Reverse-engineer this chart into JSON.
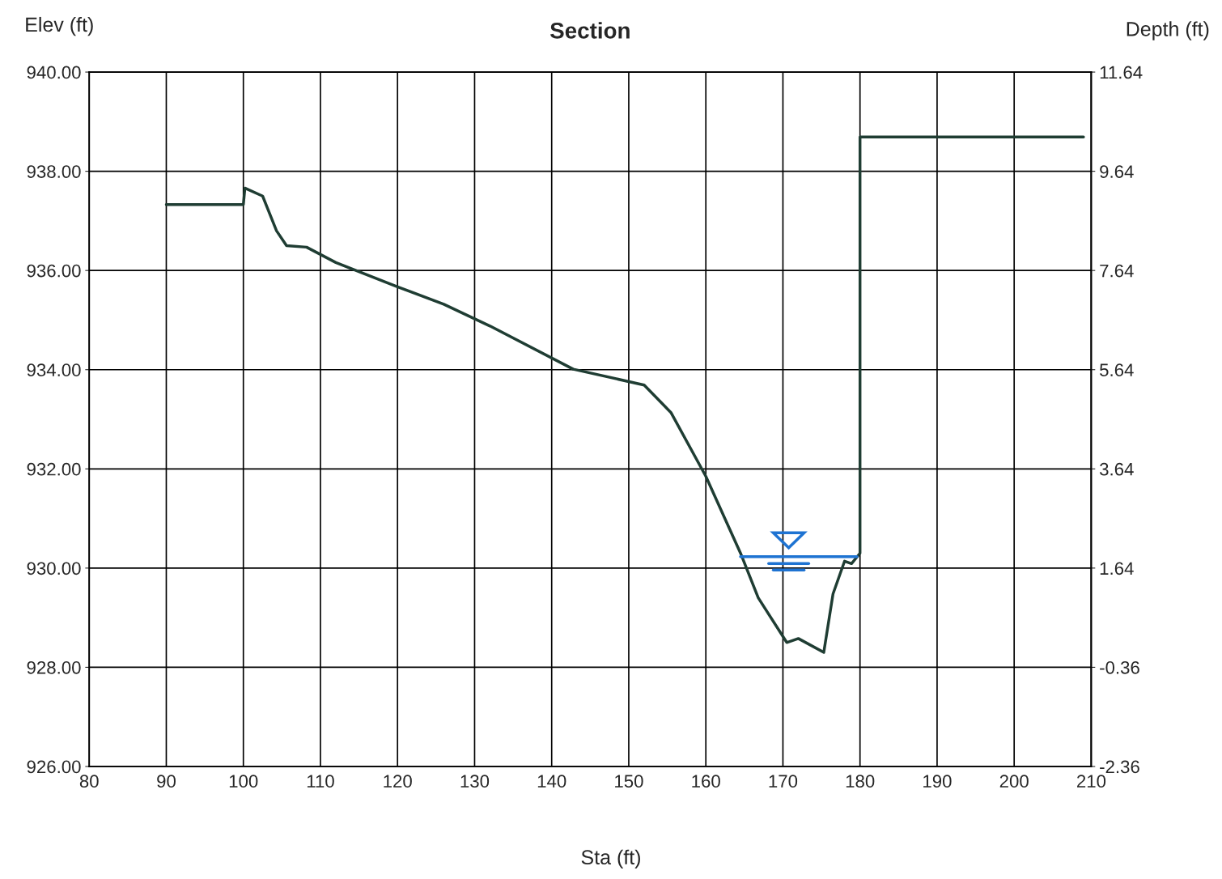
{
  "chart_data": {
    "type": "line",
    "title": "Section",
    "xlabel": "Sta (ft)",
    "ylabel": "Elev (ft)",
    "y2label": "Depth (ft)",
    "xlim": [
      80,
      210
    ],
    "xticks": [
      80,
      90,
      100,
      110,
      120,
      130,
      140,
      150,
      160,
      170,
      180,
      190,
      200,
      210
    ],
    "ylim": [
      926,
      940
    ],
    "yticks": [
      {
        "value": 926,
        "label": "926.00"
      },
      {
        "value": 928,
        "label": "928.00"
      },
      {
        "value": 930,
        "label": "930.00"
      },
      {
        "value": 932,
        "label": "932.00"
      },
      {
        "value": 934,
        "label": "934.00"
      },
      {
        "value": 936,
        "label": "936.00"
      },
      {
        "value": 938,
        "label": "938.00"
      },
      {
        "value": 940,
        "label": "940.00"
      }
    ],
    "y2lim": [
      -2.36,
      11.64
    ],
    "y2ticks": [
      -2.36,
      -0.36,
      1.64,
      3.64,
      5.64,
      7.64,
      9.64,
      11.64
    ],
    "grid": true,
    "marker": "none",
    "line_style": "solid",
    "series": [
      {
        "color": "#1f3d33",
        "x": [
          90,
          100,
          100.2,
          102.5,
          104.3,
          105.6,
          108.2,
          112,
          120,
          126,
          132,
          142.8,
          152,
          155.5,
          160,
          164.5,
          166.8,
          170.5,
          172,
          175.3,
          176.5,
          178,
          178.9,
          180,
          180,
          209
        ],
        "values": [
          937.33,
          937.33,
          937.66,
          937.5,
          936.8,
          936.5,
          936.47,
          936.16,
          935.67,
          935.32,
          934.88,
          934.01,
          933.69,
          933.13,
          931.85,
          930.3,
          929.4,
          928.5,
          928.58,
          928.3,
          929.48,
          930.14,
          930.09,
          930.3,
          938.69,
          938.69
        ]
      },
      {
        "color": "#1e73d2",
        "x": [
          164.5,
          179.6
        ],
        "values": [
          930.23,
          930.23
        ]
      }
    ]
  }
}
